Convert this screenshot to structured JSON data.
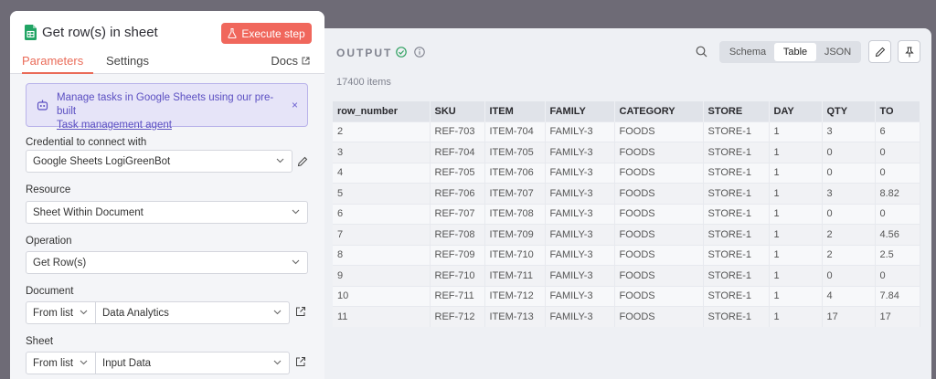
{
  "node": {
    "title": "Get row(s) in sheet",
    "execute_label": "Execute step",
    "tabs": [
      {
        "label": "Parameters",
        "active": true
      },
      {
        "label": "Settings",
        "active": false
      }
    ],
    "docs_label": "Docs",
    "icon": "google-sheets-icon"
  },
  "banner": {
    "text": "Manage tasks in Google Sheets using our pre-built",
    "link": "Task management agent",
    "close": "×"
  },
  "fields": {
    "credential": {
      "label": "Credential to connect with",
      "value": "Google Sheets LogiGreenBot"
    },
    "resource": {
      "label": "Resource",
      "value": "Sheet Within Document"
    },
    "operation": {
      "label": "Operation",
      "value": "Get Row(s)"
    },
    "document": {
      "label": "Document",
      "mode": "From list",
      "value": "Data Analytics"
    },
    "sheet": {
      "label": "Sheet",
      "mode": "From list",
      "value": "Input Data"
    }
  },
  "output": {
    "title": "OUTPUT",
    "count": "17400 items",
    "views": [
      {
        "label": "Schema",
        "active": false
      },
      {
        "label": "Table",
        "active": true
      },
      {
        "label": "JSON",
        "active": false
      }
    ],
    "columns": [
      "row_number",
      "SKU",
      "ITEM",
      "FAMILY",
      "CATEGORY",
      "STORE",
      "DAY",
      "QTY",
      "TO"
    ],
    "rows": [
      [
        "2",
        "REF-703",
        "ITEM-704",
        "FAMILY-3",
        "FOODS",
        "STORE-1",
        "1",
        "3",
        "6"
      ],
      [
        "3",
        "REF-704",
        "ITEM-705",
        "FAMILY-3",
        "FOODS",
        "STORE-1",
        "1",
        "0",
        "0"
      ],
      [
        "4",
        "REF-705",
        "ITEM-706",
        "FAMILY-3",
        "FOODS",
        "STORE-1",
        "1",
        "0",
        "0"
      ],
      [
        "5",
        "REF-706",
        "ITEM-707",
        "FAMILY-3",
        "FOODS",
        "STORE-1",
        "1",
        "3",
        "8.82"
      ],
      [
        "6",
        "REF-707",
        "ITEM-708",
        "FAMILY-3",
        "FOODS",
        "STORE-1",
        "1",
        "0",
        "0"
      ],
      [
        "7",
        "REF-708",
        "ITEM-709",
        "FAMILY-3",
        "FOODS",
        "STORE-1",
        "1",
        "2",
        "4.56"
      ],
      [
        "8",
        "REF-709",
        "ITEM-710",
        "FAMILY-3",
        "FOODS",
        "STORE-1",
        "1",
        "2",
        "2.5"
      ],
      [
        "9",
        "REF-710",
        "ITEM-711",
        "FAMILY-3",
        "FOODS",
        "STORE-1",
        "1",
        "0",
        "0"
      ],
      [
        "10",
        "REF-711",
        "ITEM-712",
        "FAMILY-3",
        "FOODS",
        "STORE-1",
        "1",
        "4",
        "7.84"
      ],
      [
        "11",
        "REF-712",
        "ITEM-713",
        "FAMILY-3",
        "FOODS",
        "STORE-1",
        "1",
        "17",
        "17"
      ]
    ]
  },
  "colors": {
    "accent": "#f0675c",
    "banner": "#5b4fc2",
    "success": "#2fa160"
  }
}
